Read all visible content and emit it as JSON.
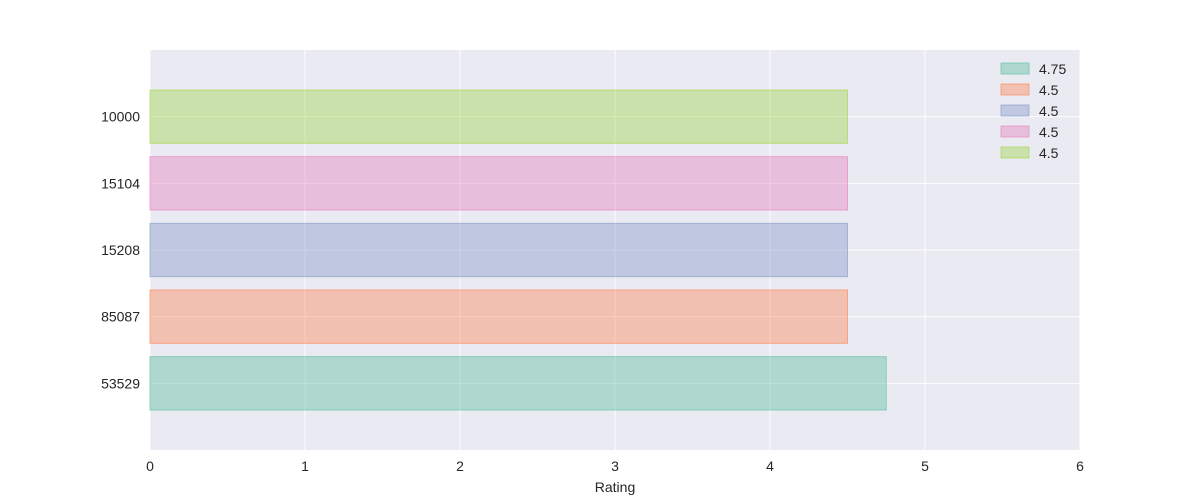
{
  "chart_data": {
    "type": "bar",
    "orientation": "horizontal",
    "categories": [
      "53529",
      "85087",
      "15208",
      "15104",
      "10000"
    ],
    "values": [
      4.75,
      4.5,
      4.5,
      4.5,
      4.5
    ],
    "xlabel": "Rating",
    "ylabel": "",
    "title": "",
    "xlim": [
      0,
      6
    ],
    "x_ticks": [
      "0",
      "1",
      "2",
      "3",
      "4",
      "5",
      "6"
    ],
    "grid": true,
    "legend_position": "top-right",
    "legend": [
      "4.75",
      "4.5",
      "4.5",
      "4.5",
      "4.5"
    ],
    "colors": [
      "#66c2a5",
      "#fc8d62",
      "#8da0cb",
      "#e78ac3",
      "#a6d854"
    ],
    "plot_background": "#eaeaf2",
    "grid_color": "#ffffff"
  }
}
